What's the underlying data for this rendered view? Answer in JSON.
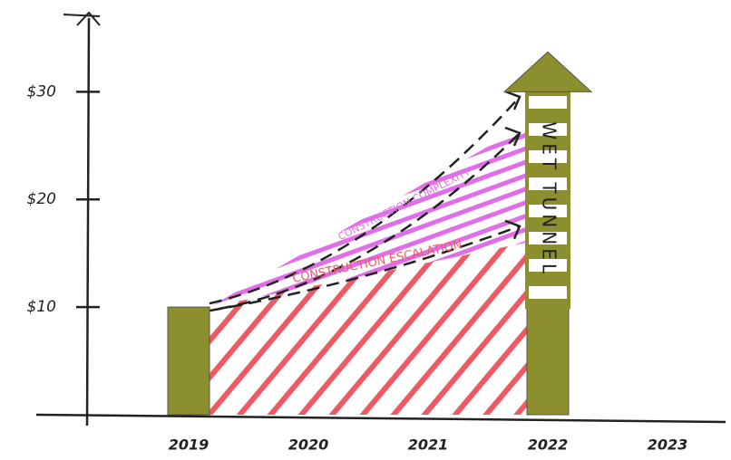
{
  "chart_data": {
    "type": "bar",
    "categories": [
      "2019",
      "2020",
      "2021",
      "2022",
      "2023"
    ],
    "values": [
      10,
      null,
      null,
      10,
      null
    ],
    "color": "#8c8f2e",
    "stack": {
      "label": "WET TUNNEL",
      "values": [
        null,
        null,
        null,
        20,
        null
      ],
      "color": "#8c8f2e"
    },
    "areas": [
      {
        "label": "CONSTRUCTION ESCALATION",
        "color": "#ee5a63",
        "x": [
          "2019",
          "2022"
        ],
        "values": [
          10,
          16
        ]
      },
      {
        "label": "CONSTRUCTION COMPLEXITY",
        "color": "#e06ee6",
        "x": [
          "2019",
          "2022"
        ],
        "values": [
          0,
          11
        ]
      }
    ],
    "ylim": [
      0,
      36
    ],
    "yticks": [
      {
        "value": 10,
        "label": "$10"
      },
      {
        "value": 20,
        "label": "$20"
      },
      {
        "value": 30,
        "label": "$30"
      }
    ],
    "grid": false
  }
}
